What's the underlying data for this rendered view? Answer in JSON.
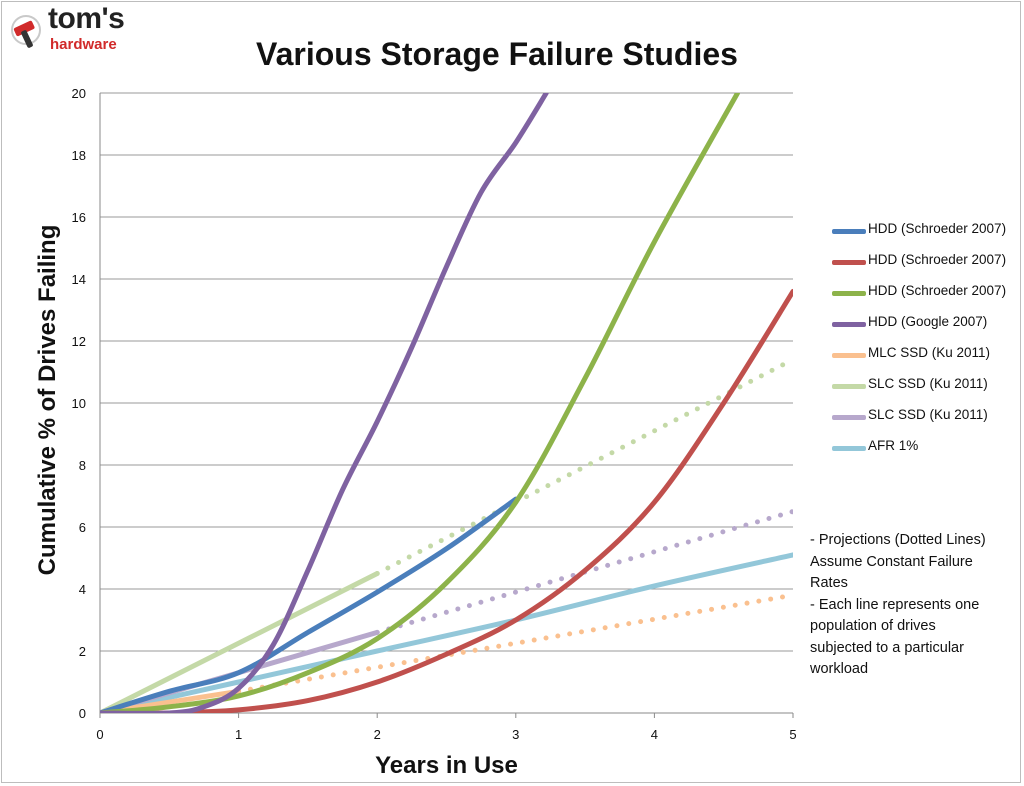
{
  "logo": {
    "brand": "tom's",
    "sub": "hardware"
  },
  "chart_data": {
    "type": "line",
    "title": "Various Storage Failure Studies",
    "xlabel": "Years in Use",
    "ylabel": "Cumulative % of Drives Failing",
    "xlim": [
      0,
      5
    ],
    "ylim": [
      0,
      20
    ],
    "xticks": [
      "0",
      "1",
      "2",
      "3",
      "4",
      "5"
    ],
    "yticks": [
      "0",
      "2",
      "4",
      "6",
      "8",
      "10",
      "12",
      "14",
      "16",
      "18",
      "20"
    ],
    "grid": "horizontal",
    "legend_position": "right",
    "series": [
      {
        "name": "HDD (Schroeder 2007)",
        "color": "#4a7ebb",
        "style": "solid",
        "points": [
          [
            0,
            0
          ],
          [
            0.5,
            0.7
          ],
          [
            1,
            1.3
          ],
          [
            1.5,
            2.6
          ],
          [
            2,
            3.9
          ],
          [
            2.5,
            5.3
          ],
          [
            3,
            6.9
          ]
        ]
      },
      {
        "name": "HDD (Schroeder 2007)",
        "color": "#c0504d",
        "style": "solid",
        "points": [
          [
            0,
            0
          ],
          [
            0.5,
            0
          ],
          [
            1,
            0.1
          ],
          [
            1.5,
            0.4
          ],
          [
            2,
            1.0
          ],
          [
            2.5,
            1.9
          ],
          [
            3,
            3.0
          ],
          [
            3.5,
            4.6
          ],
          [
            4,
            6.8
          ],
          [
            4.5,
            10.0
          ],
          [
            5,
            13.6
          ]
        ]
      },
      {
        "name": "HDD (Schroeder 2007)",
        "color": "#8db34a",
        "style": "solid",
        "points": [
          [
            0,
            0
          ],
          [
            0.5,
            0.2
          ],
          [
            1,
            0.55
          ],
          [
            1.5,
            1.3
          ],
          [
            2,
            2.4
          ],
          [
            2.5,
            4.2
          ],
          [
            3,
            6.8
          ],
          [
            3.5,
            10.8
          ],
          [
            4,
            15.2
          ],
          [
            4.6,
            20
          ]
        ]
      },
      {
        "name": "HDD (Google 2007)",
        "color": "#7f62a1",
        "style": "solid",
        "points": [
          [
            0,
            0
          ],
          [
            0.5,
            0
          ],
          [
            0.75,
            0.2
          ],
          [
            1,
            0.8
          ],
          [
            1.25,
            2.2
          ],
          [
            1.5,
            4.6
          ],
          [
            1.75,
            7.2
          ],
          [
            2,
            9.4
          ],
          [
            2.25,
            11.8
          ],
          [
            2.5,
            14.4
          ],
          [
            2.75,
            16.8
          ],
          [
            3,
            18.4
          ],
          [
            3.22,
            20
          ]
        ]
      },
      {
        "name": "MLC SSD (Ku 2011)",
        "color": "#fac08f",
        "style": "solid",
        "points": [
          [
            0,
            0
          ],
          [
            1,
            0.7
          ]
        ]
      },
      {
        "name": "SLC SSD (Ku 2011)",
        "color": "#c4d9a7",
        "style": "solid",
        "points": [
          [
            0,
            0
          ],
          [
            2,
            4.5
          ]
        ]
      },
      {
        "name": "SLC SSD (Ku 2011)",
        "color": "#b7a8cc",
        "style": "solid",
        "points": [
          [
            0,
            0
          ],
          [
            2,
            2.6
          ]
        ]
      },
      {
        "name": "AFR 1%",
        "color": "#93c7d9",
        "style": "solid",
        "points": [
          [
            0,
            0
          ],
          [
            1,
            1.0
          ],
          [
            2,
            2.0
          ],
          [
            3,
            3.0
          ],
          [
            4,
            4.1
          ],
          [
            5,
            5.1
          ]
        ]
      }
    ],
    "projections": [
      {
        "color": "#fac08f",
        "points": [
          [
            1,
            0.7
          ],
          [
            5,
            3.8
          ]
        ]
      },
      {
        "color": "#c4d9a7",
        "points": [
          [
            2,
            4.5
          ],
          [
            5,
            11.4
          ]
        ]
      },
      {
        "color": "#b7a8cc",
        "points": [
          [
            2,
            2.6
          ],
          [
            5,
            6.5
          ]
        ]
      }
    ]
  },
  "notes": [
    "- Projections (Dotted Lines)",
    "Assume Constant Failure",
    "Rates",
    "- Each line represents one",
    "population of drives",
    "subjected to a particular",
    "workload"
  ]
}
